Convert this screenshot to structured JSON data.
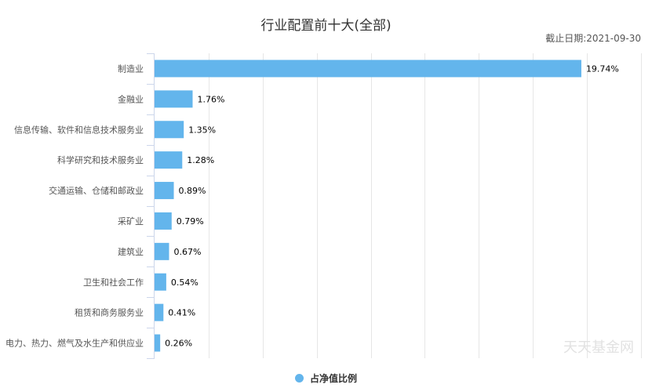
{
  "chart_data": {
    "type": "bar",
    "orientation": "horizontal",
    "title": "行业配置前十大(全部)",
    "subtitle": "截止日期:2021-09-30",
    "categories": [
      "制造业",
      "金融业",
      "信息传输、软件和信息技术服务业",
      "科学研究和技术服务业",
      "交通运输、仓储和邮政业",
      "采矿业",
      "建筑业",
      "卫生和社会工作",
      "租赁和商务服务业",
      "电力、热力、燃气及水生产和供应业"
    ],
    "series": [
      {
        "name": "占净值比例",
        "values": [
          19.74,
          1.76,
          1.35,
          1.28,
          0.89,
          0.79,
          0.67,
          0.54,
          0.41,
          0.26
        ],
        "color": "#63b5ec"
      }
    ],
    "data_labels": [
      "19.74%",
      "1.76%",
      "1.35%",
      "1.28%",
      "0.89%",
      "0.79%",
      "0.67%",
      "0.54%",
      "0.41%",
      "0.26%"
    ],
    "xlim": [
      0,
      22.5
    ],
    "x_grid_step": 2.5,
    "grid": true,
    "x_tick_labels_shown": false,
    "legend": "bottom-center"
  },
  "watermark": "天天基金网"
}
